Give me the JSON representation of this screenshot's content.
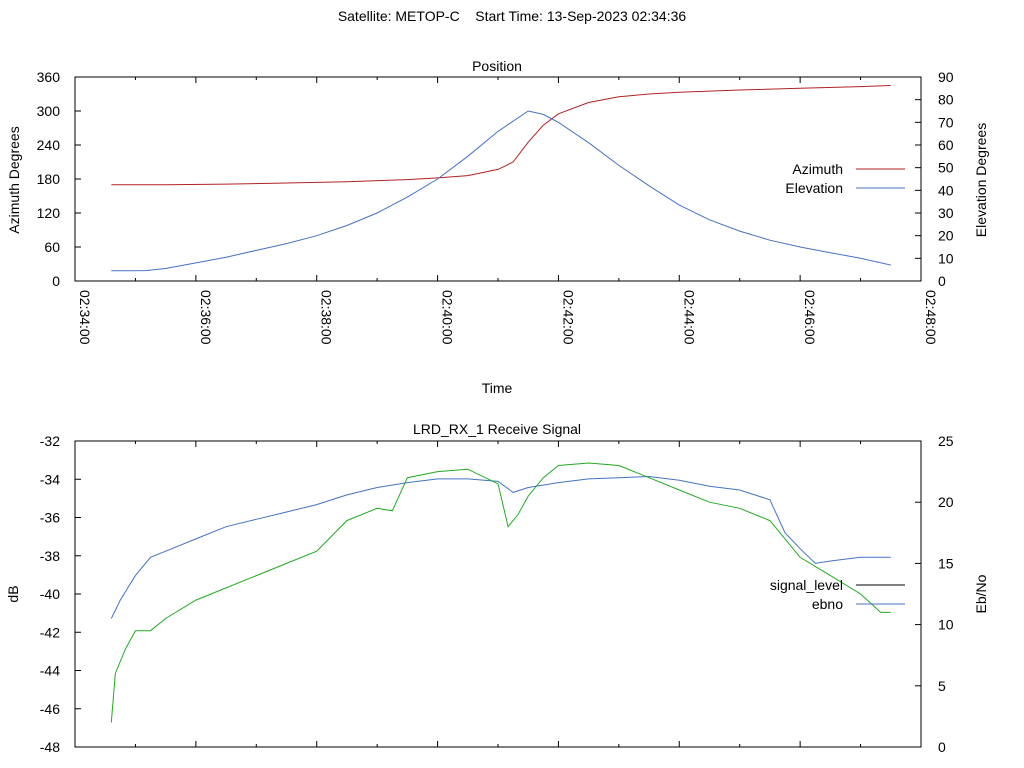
{
  "page": {
    "title": "Satellite: METOP-C    Start Time: 13-Sep-2023 02:34:36"
  },
  "chart_data": [
    {
      "type": "line",
      "title": "Position",
      "xlabel": "Time",
      "ylabel": "Azimuth Degrees",
      "y2label": "Elevation Degrees",
      "xlim": [
        "02:34:00",
        "02:48:00"
      ],
      "ylim": [
        0,
        360
      ],
      "y2lim": [
        0,
        90
      ],
      "x_ticks": [
        "02:34:00",
        "02:36:00",
        "02:38:00",
        "02:40:00",
        "02:42:00",
        "02:44:00",
        "02:46:00",
        "02:48:00"
      ],
      "y_ticks": [
        "0",
        "60",
        "120",
        "180",
        "240",
        "300",
        "360"
      ],
      "y2_ticks": [
        "0",
        "10",
        "20",
        "30",
        "40",
        "50",
        "60",
        "70",
        "80",
        "90"
      ],
      "grid": false,
      "legend_position": "right",
      "series": [
        {
          "name": "Azimuth",
          "axis": "left",
          "color": "#b22222",
          "points": [
            [
              "02:34:36",
              170
            ],
            [
              "02:35:30",
              170
            ],
            [
              "02:36:30",
              171
            ],
            [
              "02:37:30",
              173
            ],
            [
              "02:38:30",
              175
            ],
            [
              "02:39:30",
              179
            ],
            [
              "02:40:00",
              182
            ],
            [
              "02:40:30",
              186
            ],
            [
              "02:41:00",
              197
            ],
            [
              "02:41:15",
              210
            ],
            [
              "02:41:30",
              245
            ],
            [
              "02:41:45",
              275
            ],
            [
              "02:42:00",
              295
            ],
            [
              "02:42:30",
              315
            ],
            [
              "02:43:00",
              325
            ],
            [
              "02:43:30",
              330
            ],
            [
              "02:44:00",
              333
            ],
            [
              "02:45:00",
              337
            ],
            [
              "02:46:00",
              340
            ],
            [
              "02:47:00",
              343
            ],
            [
              "02:47:30",
              345
            ]
          ]
        },
        {
          "name": "Elevation",
          "axis": "right",
          "color": "#4472c4",
          "points": [
            [
              "02:34:36",
              4.5
            ],
            [
              "02:35:10",
              4.6
            ],
            [
              "02:35:30",
              5.5
            ],
            [
              "02:36:00",
              8
            ],
            [
              "02:36:30",
              10.5
            ],
            [
              "02:37:00",
              13.5
            ],
            [
              "02:37:30",
              16.5
            ],
            [
              "02:38:00",
              20
            ],
            [
              "02:38:30",
              24.5
            ],
            [
              "02:39:00",
              30
            ],
            [
              "02:39:30",
              37
            ],
            [
              "02:40:00",
              45
            ],
            [
              "02:40:30",
              55
            ],
            [
              "02:41:00",
              66
            ],
            [
              "02:41:30",
              75
            ],
            [
              "02:41:45",
              73.5
            ],
            [
              "02:42:00",
              70
            ],
            [
              "02:42:30",
              61
            ],
            [
              "02:43:00",
              51
            ],
            [
              "02:43:30",
              42
            ],
            [
              "02:44:00",
              33.5
            ],
            [
              "02:44:30",
              27
            ],
            [
              "02:45:00",
              22
            ],
            [
              "02:45:30",
              18
            ],
            [
              "02:46:00",
              15
            ],
            [
              "02:46:30",
              12.5
            ],
            [
              "02:47:00",
              10
            ],
            [
              "02:47:30",
              7
            ]
          ]
        }
      ]
    },
    {
      "type": "line",
      "title": "LRD_RX_1 Receive Signal",
      "ylabel": "dB",
      "y2label": "Eb/No",
      "xlim": [
        "02:34:00",
        "02:48:00"
      ],
      "ylim": [
        -48,
        -32
      ],
      "y2lim": [
        0,
        25
      ],
      "y_ticks": [
        "-48",
        "-46",
        "-44",
        "-42",
        "-40",
        "-38",
        "-36",
        "-34",
        "-32"
      ],
      "y2_ticks": [
        "0",
        "5",
        "10",
        "15",
        "20",
        "25"
      ],
      "grid": false,
      "legend_position": "right",
      "series": [
        {
          "name": "signal_level",
          "axis": "left",
          "color": "#000000",
          "points": []
        },
        {
          "name": "ebno",
          "axis": "right",
          "color": "#4472c4",
          "points": [
            [
              "02:34:36",
              10.5
            ],
            [
              "02:34:45",
              12
            ],
            [
              "02:35:00",
              14
            ],
            [
              "02:35:15",
              15.5
            ],
            [
              "02:35:30",
              16
            ],
            [
              "02:36:00",
              17
            ],
            [
              "02:36:30",
              18
            ],
            [
              "02:37:00",
              18.6
            ],
            [
              "02:37:30",
              19.2
            ],
            [
              "02:38:00",
              19.8
            ],
            [
              "02:38:30",
              20.6
            ],
            [
              "02:39:00",
              21.2
            ],
            [
              "02:39:30",
              21.6
            ],
            [
              "02:40:00",
              21.9
            ],
            [
              "02:40:30",
              21.9
            ],
            [
              "02:41:00",
              21.7
            ],
            [
              "02:41:15",
              20.8
            ],
            [
              "02:41:30",
              21.2
            ],
            [
              "02:42:00",
              21.6
            ],
            [
              "02:42:30",
              21.9
            ],
            [
              "02:43:00",
              22
            ],
            [
              "02:43:30",
              22.1
            ],
            [
              "02:44:00",
              21.8
            ],
            [
              "02:44:30",
              21.3
            ],
            [
              "02:45:00",
              21
            ],
            [
              "02:45:30",
              20.2
            ],
            [
              "02:45:45",
              17.5
            ],
            [
              "02:46:00",
              16.2
            ],
            [
              "02:46:15",
              15
            ],
            [
              "02:46:30",
              15.2
            ],
            [
              "02:47:00",
              15.5
            ],
            [
              "02:47:30",
              15.5
            ]
          ]
        },
        {
          "name": "",
          "axis": "right",
          "color": "#22aa22",
          "points": [
            [
              "02:34:36",
              2
            ],
            [
              "02:34:40",
              6
            ],
            [
              "02:34:50",
              8
            ],
            [
              "02:35:00",
              9.5
            ],
            [
              "02:35:15",
              9.5
            ],
            [
              "02:35:30",
              10.5
            ],
            [
              "02:36:00",
              12
            ],
            [
              "02:36:30",
              13
            ],
            [
              "02:37:00",
              14
            ],
            [
              "02:37:30",
              15
            ],
            [
              "02:38:00",
              16
            ],
            [
              "02:38:30",
              18.5
            ],
            [
              "02:39:00",
              19.5
            ],
            [
              "02:39:15",
              19.3
            ],
            [
              "02:39:30",
              22
            ],
            [
              "02:40:00",
              22.5
            ],
            [
              "02:40:30",
              22.7
            ],
            [
              "02:41:00",
              21.5
            ],
            [
              "02:41:10",
              18
            ],
            [
              "02:41:20",
              19
            ],
            [
              "02:41:30",
              20.5
            ],
            [
              "02:41:45",
              22
            ],
            [
              "02:42:00",
              23
            ],
            [
              "02:42:30",
              23.2
            ],
            [
              "02:43:00",
              23
            ],
            [
              "02:43:30",
              22
            ],
            [
              "02:44:00",
              21
            ],
            [
              "02:44:30",
              20
            ],
            [
              "02:45:00",
              19.5
            ],
            [
              "02:45:30",
              18.5
            ],
            [
              "02:46:00",
              15.5
            ],
            [
              "02:46:30",
              14
            ],
            [
              "02:47:00",
              12.5
            ],
            [
              "02:47:20",
              11
            ],
            [
              "02:47:30",
              11
            ]
          ]
        }
      ]
    }
  ]
}
